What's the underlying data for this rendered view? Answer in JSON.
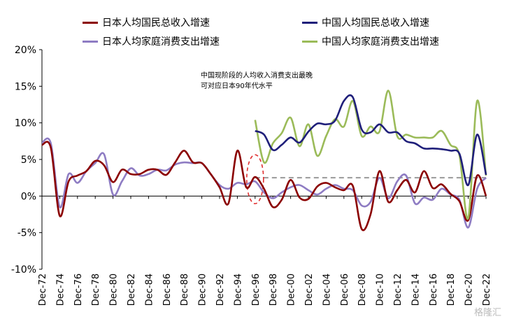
{
  "colors": {
    "japan_gni": "#8B0000",
    "china_gni": "#1F1F7A",
    "japan_consumption": "#8E7CC3",
    "china_consumption": "#9BBB59",
    "reference_line": "#999999",
    "ellipse": "#E03030"
  },
  "watermark": "格隆汇",
  "chart_data": {
    "type": "line",
    "ylim": [
      -10,
      20
    ],
    "yticks": [
      "20%",
      "15%",
      "10%",
      "5%",
      "0%",
      "-5%",
      "-10%"
    ],
    "ytick_values": [
      20,
      15,
      10,
      5,
      0,
      -5,
      -10
    ],
    "xlim": [
      1972,
      2022
    ],
    "xticks": [
      "Dec-72",
      "Dec-74",
      "Dec-76",
      "Dec-78",
      "Dec-80",
      "Dec-82",
      "Dec-84",
      "Dec-86",
      "Dec-88",
      "Dec-90",
      "Dec-92",
      "Dec-94",
      "Dec-96",
      "Dec-98",
      "Dec-00",
      "Dec-02",
      "Dec-04",
      "Dec-06",
      "Dec-08",
      "Dec-10",
      "Dec-12",
      "Dec-14",
      "Dec-16",
      "Dec-18",
      "Dec-20",
      "Dec-22"
    ],
    "xtick_values": [
      1972,
      1974,
      1976,
      1978,
      1980,
      1982,
      1984,
      1986,
      1988,
      1990,
      1992,
      1994,
      1996,
      1998,
      2000,
      2002,
      2004,
      2006,
      2008,
      2010,
      2012,
      2014,
      2016,
      2018,
      2020,
      2022
    ],
    "annotation": [
      "中国现阶段的人均收入消费支出最晚",
      "可对应日本90年代水平"
    ],
    "reference_line": {
      "x": [
        1996,
        2022
      ],
      "y": 2.5
    },
    "series": [
      {
        "name": "日本人均国民总收入增速",
        "color_key": "japan_gni",
        "x": [
          1972,
          1973,
          1974,
          1975,
          1976,
          1977,
          1978,
          1979,
          1980,
          1981,
          1982,
          1983,
          1984,
          1985,
          1986,
          1987,
          1988,
          1989,
          1990,
          1991,
          1992,
          1993,
          1994,
          1995,
          1996,
          1997,
          1998,
          1999,
          2000,
          2001,
          2002,
          2003,
          2004,
          2005,
          2006,
          2007,
          2008,
          2009,
          2010,
          2011,
          2012,
          2013,
          2014,
          2015,
          2016,
          2017,
          2018,
          2019,
          2020,
          2021,
          2022
        ],
        "y": [
          7.0,
          6.6,
          -2.7,
          2.0,
          2.8,
          3.4,
          4.8,
          4.2,
          1.9,
          3.6,
          3.0,
          3.0,
          3.6,
          3.6,
          2.9,
          4.6,
          6.2,
          4.6,
          4.5,
          3.0,
          1.2,
          -1.0,
          6.2,
          1.2,
          2.6,
          1.0,
          -1.5,
          -0.5,
          2.2,
          -0.2,
          -0.4,
          1.3,
          1.8,
          1.2,
          0.8,
          1.4,
          -4.5,
          -2.5,
          3.4,
          -0.8,
          0.8,
          2.2,
          0.5,
          3.4,
          1.1,
          1.6,
          0.3,
          -0.7,
          -3.3,
          2.8,
          0.0
        ]
      },
      {
        "name": "中国人均国民总收入增速",
        "color_key": "china_gni",
        "x": [
          1996,
          1997,
          1998,
          1999,
          2000,
          2001,
          2002,
          2003,
          2004,
          2005,
          2006,
          2007,
          2008,
          2009,
          2010,
          2011,
          2012,
          2013,
          2014,
          2015,
          2016,
          2017,
          2018,
          2019,
          2020,
          2021,
          2022
        ],
        "y": [
          8.9,
          8.4,
          6.3,
          7.0,
          8.0,
          7.3,
          8.8,
          9.9,
          9.8,
          10.3,
          13.0,
          13.5,
          9.1,
          8.7,
          9.8,
          8.7,
          8.7,
          7.5,
          7.2,
          6.5,
          6.5,
          6.4,
          6.2,
          5.8,
          1.5,
          8.4,
          2.9
        ]
      },
      {
        "name": "日本人均家庭消费支出增速",
        "color_key": "japan_consumption",
        "x": [
          1972,
          1973,
          1974,
          1975,
          1976,
          1977,
          1978,
          1979,
          1980,
          1981,
          1982,
          1983,
          1984,
          1985,
          1986,
          1987,
          1988,
          1989,
          1990,
          1991,
          1992,
          1993,
          1994,
          1995,
          1996,
          1997,
          1998,
          1999,
          2000,
          2001,
          2002,
          2003,
          2004,
          2005,
          2006,
          2007,
          2008,
          2009,
          2010,
          2011,
          2012,
          2013,
          2014,
          2015,
          2016,
          2017,
          2018,
          2019,
          2020,
          2021,
          2022
        ],
        "y": [
          7.3,
          7.2,
          -1.5,
          3.0,
          1.8,
          3.4,
          4.5,
          5.7,
          0.2,
          2.0,
          3.8,
          2.8,
          3.0,
          3.6,
          3.5,
          4.3,
          4.6,
          4.5,
          4.5,
          3.0,
          1.5,
          1.0,
          1.8,
          1.6,
          2.0,
          0.5,
          -0.3,
          0.5,
          1.2,
          1.5,
          0.8,
          0.2,
          1.0,
          1.5,
          1.0,
          0.8,
          -1.3,
          -0.8,
          2.5,
          -0.3,
          2.0,
          2.8,
          -1.0,
          -0.2,
          -0.5,
          1.0,
          0.2,
          -0.5,
          -4.3,
          1.0,
          2.5
        ]
      },
      {
        "name": "中国人均家庭消费支出增速",
        "color_key": "china_consumption",
        "x": [
          1996,
          1997,
          1998,
          1999,
          2000,
          2001,
          2002,
          2003,
          2004,
          2005,
          2006,
          2007,
          2008,
          2009,
          2010,
          2011,
          2012,
          2013,
          2014,
          2015,
          2016,
          2017,
          2018,
          2019,
          2020,
          2021,
          2022
        ],
        "y": [
          10.4,
          4.6,
          7.2,
          8.6,
          10.7,
          6.8,
          9.8,
          5.5,
          8.2,
          10.5,
          9.5,
          13.0,
          8.2,
          9.5,
          8.8,
          14.4,
          8.2,
          8.4,
          8.0,
          8.0,
          8.0,
          8.9,
          7.0,
          5.6,
          -3.0,
          13.0,
          2.8
        ]
      }
    ],
    "legend": [
      {
        "label": "日本人均国民总收入增速",
        "color_key": "japan_gni"
      },
      {
        "label": "中国人均国民总收入增速",
        "color_key": "china_gni"
      },
      {
        "label": "日本人均家庭消费支出增速",
        "color_key": "japan_consumption"
      },
      {
        "label": "中国人均家庭消费支出增速",
        "color_key": "china_consumption"
      }
    ]
  }
}
